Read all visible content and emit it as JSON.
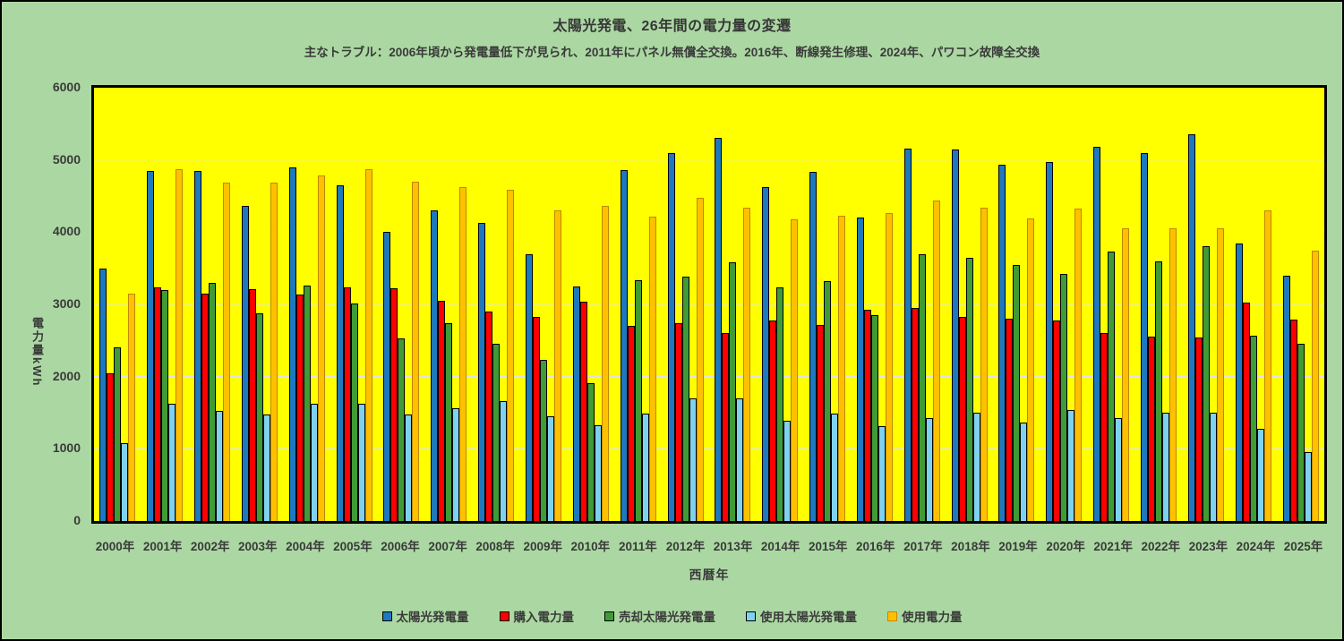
{
  "title": "太陽光発電、26年間の電力量の変遷",
  "subtitle": "主なトラブル：2006年頃から発電量低下が見られ、2011年にパネル無償全交換。2016年、断線発生修理、2024年、パワコン故障全交換",
  "colors": {
    "page_background": "#ABD8A2",
    "plot_background": "#FFFF00",
    "gridline": "#D9E1F2",
    "text": "#3A3A3A",
    "border": "#000000"
  },
  "chart_data": {
    "type": "bar",
    "title": "太陽光発電、26年間の電力量の変遷",
    "subtitle": "主なトラブル：2006年頃から発電量低下が見られ、2011年にパネル無償全交換。2016年、断線発生修理、2024年、パワコン故障全交換",
    "xlabel": "西暦年",
    "ylabel": "電力量kWh",
    "ylim": [
      0,
      6000
    ],
    "yticks": [
      0,
      1000,
      2000,
      3000,
      4000,
      5000,
      6000
    ],
    "grid": true,
    "legend_position": "bottom",
    "categories": [
      "2000年",
      "2001年",
      "2002年",
      "2003年",
      "2004年",
      "2005年",
      "2006年",
      "2007年",
      "2008年",
      "2009年",
      "2010年",
      "2011年",
      "2012年",
      "2013年",
      "2014年",
      "2015年",
      "2016年",
      "2017年",
      "2018年",
      "2019年",
      "2020年",
      "2021年",
      "2022年",
      "2023年",
      "2024年",
      "2025年"
    ],
    "series": [
      {
        "name": "太陽光発電量",
        "color": "#1E78BE",
        "border": "#000000",
        "values": [
          3500,
          4850,
          4850,
          4360,
          4900,
          4650,
          4010,
          4300,
          4130,
          3700,
          3250,
          4860,
          5100,
          5300,
          4620,
          4830,
          4200,
          5160,
          5150,
          4930,
          4970,
          5180,
          5100,
          5350,
          3840,
          3400
        ]
      },
      {
        "name": "購入電力量",
        "color": "#FE0000",
        "border": "#000000",
        "values": [
          2050,
          3230,
          3150,
          3210,
          3140,
          3240,
          3220,
          3050,
          2900,
          2830,
          3040,
          2700,
          2740,
          2600,
          2780,
          2720,
          2920,
          2950,
          2830,
          2800,
          2780,
          2600,
          2550,
          2540,
          3030,
          2790
        ]
      },
      {
        "name": "売却太陽光発電量",
        "color": "#3F9B35",
        "border": "#000000",
        "values": [
          2400,
          3200,
          3300,
          2880,
          3260,
          3010,
          2530,
          2740,
          2450,
          2230,
          1910,
          3340,
          3380,
          3580,
          3230,
          3320,
          2850,
          3690,
          3640,
          3540,
          3420,
          3730,
          3590,
          3810,
          2570,
          2450
        ]
      },
      {
        "name": "使用太陽光発電量",
        "color": "#7FD1F0",
        "border": "#000000",
        "values": [
          1080,
          1630,
          1520,
          1470,
          1630,
          1630,
          1480,
          1560,
          1660,
          1450,
          1330,
          1490,
          1700,
          1700,
          1390,
          1490,
          1320,
          1430,
          1500,
          1370,
          1540,
          1430,
          1500,
          1500,
          1280,
          960
        ]
      },
      {
        "name": "使用電力量",
        "color": "#FFC000",
        "border": "#BE8800",
        "values": [
          3150,
          4870,
          4680,
          4680,
          4780,
          4870,
          4700,
          4630,
          4590,
          4300,
          4360,
          4210,
          4480,
          4340,
          4180,
          4230,
          4270,
          4440,
          4340,
          4190,
          4330,
          4050,
          4050,
          4050,
          4300,
          3740
        ]
      }
    ]
  }
}
